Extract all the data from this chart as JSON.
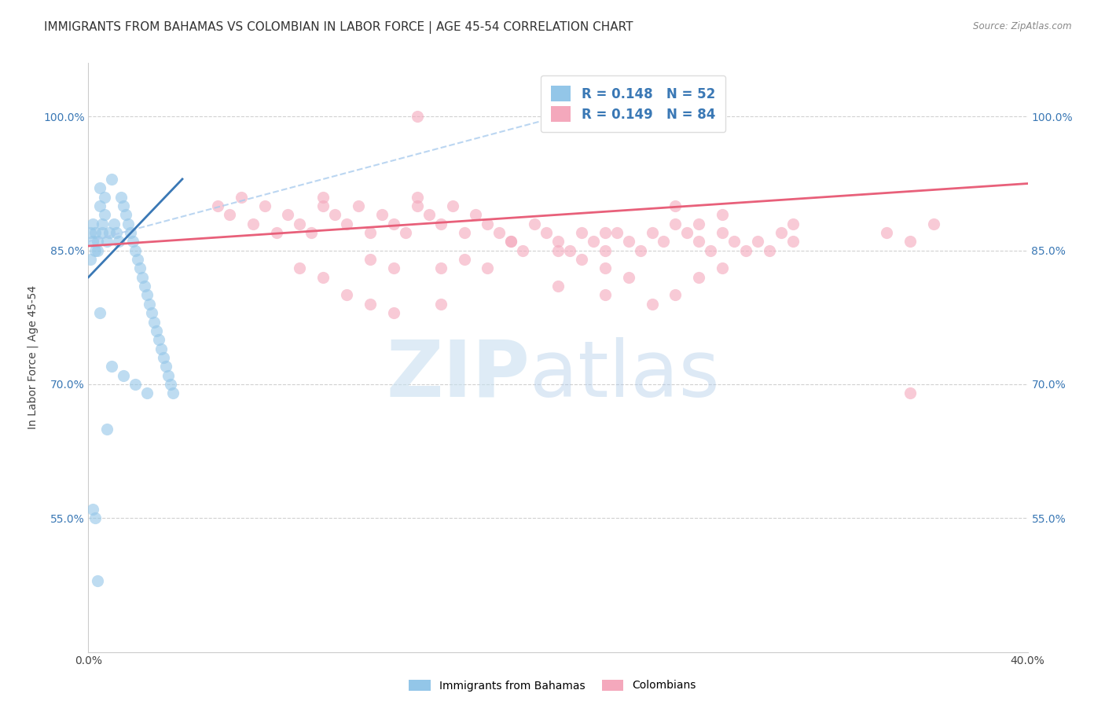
{
  "title": "IMMIGRANTS FROM BAHAMAS VS COLOMBIAN IN LABOR FORCE | AGE 45-54 CORRELATION CHART",
  "source": "Source: ZipAtlas.com",
  "ylabel_label": "In Labor Force | Age 45-54",
  "legend_label1": "Immigrants from Bahamas",
  "legend_label2": "Colombians",
  "R1": 0.148,
  "N1": 52,
  "R2": 0.149,
  "N2": 84,
  "color_blue": "#93c6e8",
  "color_blue_edge": "#5a9fd4",
  "color_pink": "#f4a8bc",
  "color_pink_edge": "#e87090",
  "color_trend_blue": "#3a78b5",
  "color_trend_pink": "#e8607a",
  "color_trend_dashed": "#aaccee",
  "xlim": [
    0.0,
    0.4
  ],
  "ylim": [
    0.4,
    1.06
  ],
  "yticks": [
    0.55,
    0.7,
    0.85,
    1.0
  ],
  "ytick_labels": [
    "55.0%",
    "70.0%",
    "85.0%",
    "100.0%"
  ],
  "xtick_positions": [
    0.0,
    0.05,
    0.1,
    0.15,
    0.2,
    0.25,
    0.3,
    0.35,
    0.4
  ],
  "xtick_labels": [
    "0.0%",
    "",
    "",
    "",
    "",
    "",
    "",
    "",
    "40.0%"
  ],
  "watermark_zip": "ZIP",
  "watermark_atlas": "atlas",
  "background_color": "#ffffff",
  "grid_color": "#cccccc",
  "title_fontsize": 11,
  "axis_label_fontsize": 10,
  "tick_fontsize": 10,
  "legend_fontsize": 12,
  "blue_x": [
    0.001,
    0.001,
    0.002,
    0.002,
    0.003,
    0.003,
    0.004,
    0.004,
    0.005,
    0.005,
    0.006,
    0.006,
    0.007,
    0.007,
    0.008,
    0.009,
    0.01,
    0.011,
    0.012,
    0.013,
    0.014,
    0.015,
    0.016,
    0.017,
    0.018,
    0.019,
    0.02,
    0.021,
    0.022,
    0.023,
    0.024,
    0.025,
    0.026,
    0.027,
    0.028,
    0.029,
    0.03,
    0.031,
    0.032,
    0.033,
    0.034,
    0.035,
    0.036,
    0.005,
    0.01,
    0.015,
    0.02,
    0.025,
    0.002,
    0.003,
    0.004,
    0.008
  ],
  "blue_y": [
    0.84,
    0.87,
    0.86,
    0.88,
    0.85,
    0.87,
    0.86,
    0.85,
    0.92,
    0.9,
    0.88,
    0.87,
    0.89,
    0.91,
    0.86,
    0.87,
    0.93,
    0.88,
    0.87,
    0.86,
    0.91,
    0.9,
    0.89,
    0.88,
    0.87,
    0.86,
    0.85,
    0.84,
    0.83,
    0.82,
    0.81,
    0.8,
    0.79,
    0.78,
    0.77,
    0.76,
    0.75,
    0.74,
    0.73,
    0.72,
    0.71,
    0.7,
    0.69,
    0.78,
    0.72,
    0.71,
    0.7,
    0.69,
    0.56,
    0.55,
    0.48,
    0.65
  ],
  "pink_x": [
    0.055,
    0.06,
    0.065,
    0.07,
    0.075,
    0.08,
    0.085,
    0.09,
    0.095,
    0.1,
    0.1,
    0.105,
    0.11,
    0.115,
    0.12,
    0.125,
    0.13,
    0.135,
    0.14,
    0.14,
    0.145,
    0.15,
    0.155,
    0.16,
    0.165,
    0.17,
    0.175,
    0.18,
    0.185,
    0.19,
    0.195,
    0.2,
    0.205,
    0.21,
    0.215,
    0.22,
    0.225,
    0.23,
    0.235,
    0.24,
    0.245,
    0.25,
    0.255,
    0.26,
    0.265,
    0.27,
    0.275,
    0.28,
    0.285,
    0.29,
    0.295,
    0.3,
    0.09,
    0.12,
    0.14,
    0.18,
    0.22,
    0.25,
    0.26,
    0.27,
    0.3,
    0.34,
    0.35,
    0.36,
    0.15,
    0.16,
    0.17,
    0.2,
    0.21,
    0.22,
    0.23,
    0.1,
    0.13,
    0.26,
    0.27,
    0.11,
    0.12,
    0.13,
    0.2,
    0.22,
    0.24,
    0.25,
    0.15,
    0.35
  ],
  "pink_y": [
    0.9,
    0.89,
    0.91,
    0.88,
    0.9,
    0.87,
    0.89,
    0.88,
    0.87,
    0.9,
    0.91,
    0.89,
    0.88,
    0.9,
    0.87,
    0.89,
    0.88,
    0.87,
    0.9,
    0.91,
    0.89,
    0.88,
    0.9,
    0.87,
    0.89,
    0.88,
    0.87,
    0.86,
    0.85,
    0.88,
    0.87,
    0.86,
    0.85,
    0.87,
    0.86,
    0.85,
    0.87,
    0.86,
    0.85,
    0.87,
    0.86,
    0.88,
    0.87,
    0.86,
    0.85,
    0.87,
    0.86,
    0.85,
    0.86,
    0.85,
    0.87,
    0.86,
    0.83,
    0.84,
    1.0,
    0.86,
    0.87,
    0.9,
    0.88,
    0.89,
    0.88,
    0.87,
    0.86,
    0.88,
    0.83,
    0.84,
    0.83,
    0.85,
    0.84,
    0.83,
    0.82,
    0.82,
    0.83,
    0.82,
    0.83,
    0.8,
    0.79,
    0.78,
    0.81,
    0.8,
    0.79,
    0.8,
    0.79,
    0.69
  ]
}
